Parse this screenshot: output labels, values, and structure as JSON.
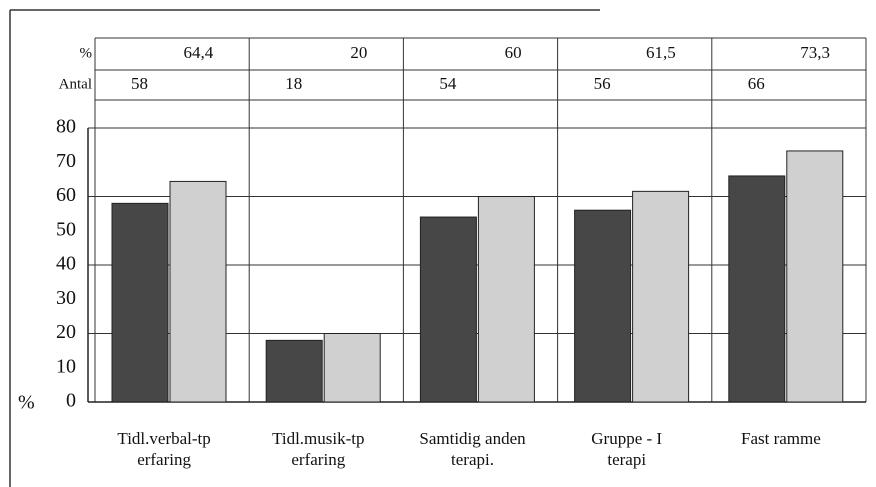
{
  "chart_data": {
    "type": "bar",
    "y_axis_label": "%",
    "categories": [
      [
        "Tidl.verbal-tp",
        "erfaring"
      ],
      [
        "Tidl.musik-tp",
        "erfaring"
      ],
      [
        "Samtidig anden",
        "terapi."
      ],
      [
        "Gruppe - I",
        "terapi"
      ],
      [
        "Fast ramme"
      ]
    ],
    "series": [
      {
        "name": "Antal",
        "color": "#474747",
        "values": [
          58,
          18,
          54,
          56,
          66
        ]
      },
      {
        "name": "%",
        "color": "#d0d0d0",
        "values": [
          64.4,
          20,
          60,
          61.5,
          73.3
        ],
        "value_labels": [
          "64,4",
          "20",
          "60",
          "61,5",
          "73,3"
        ]
      }
    ],
    "ylim": [
      0,
      80
    ],
    "yticks": [
      0,
      10,
      20,
      30,
      40,
      50,
      60,
      70,
      80
    ],
    "grid": true
  }
}
